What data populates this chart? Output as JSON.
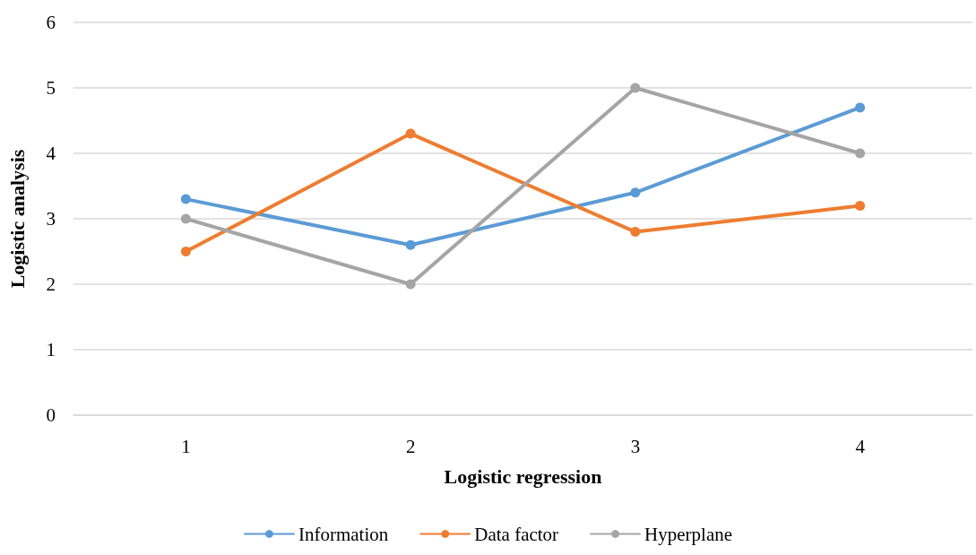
{
  "chart_data": {
    "type": "line",
    "xlabel": "Logistic regression",
    "ylabel": "Logistic analysis",
    "categories": [
      "1",
      "2",
      "3",
      "4"
    ],
    "series": [
      {
        "name": "Information",
        "color": "#5b9bd5",
        "values": [
          3.3,
          2.6,
          3.4,
          4.7
        ]
      },
      {
        "name": "Data factor",
        "color": "#ed7d31",
        "values": [
          2.5,
          4.3,
          2.8,
          3.2
        ]
      },
      {
        "name": "Hyperplane",
        "color": "#a5a5a5",
        "values": [
          3,
          2,
          5,
          4
        ]
      }
    ],
    "ylim": [
      0,
      6
    ],
    "yticks": [
      0,
      1,
      2,
      3,
      4,
      5,
      6
    ],
    "grid": "y",
    "legend": "bottom",
    "marker": "circle",
    "line_style": "solid"
  }
}
